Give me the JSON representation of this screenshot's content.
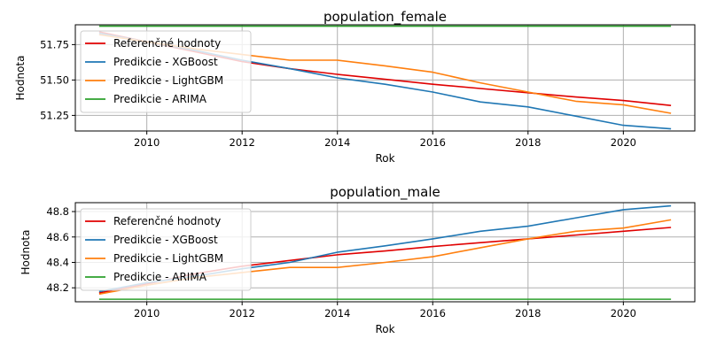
{
  "chart_data": [
    {
      "type": "line",
      "title": "population_female",
      "xlabel": "Rok",
      "ylabel": "Hodnota",
      "xlim": [
        2008.5,
        2021.5
      ],
      "ylim": [
        51.14,
        51.89
      ],
      "xticks": [
        2010,
        2012,
        2014,
        2016,
        2018,
        2020
      ],
      "yticks": [
        51.25,
        51.5,
        51.75
      ],
      "ytick_labels": [
        "51.25",
        "51.50",
        "51.75"
      ],
      "grid": true,
      "legend": "upper-left",
      "x": [
        2009,
        2010,
        2011,
        2012,
        2013,
        2014,
        2015,
        2016,
        2017,
        2018,
        2019,
        2020,
        2021
      ],
      "series": [
        {
          "name": "Referenčné hodnoty",
          "color": "#e00000",
          "values": [
            51.84,
            51.77,
            51.7,
            51.63,
            51.58,
            51.54,
            51.505,
            51.47,
            51.44,
            51.41,
            51.38,
            51.355,
            51.32
          ]
        },
        {
          "name": "Predikcie - XGBoost",
          "color": "#1f77b4",
          "values": [
            51.83,
            51.77,
            51.71,
            51.64,
            51.58,
            51.515,
            51.47,
            51.415,
            51.345,
            51.31,
            51.245,
            51.18,
            51.155
          ]
        },
        {
          "name": "Predikcie - LightGBM",
          "color": "#ff7f0e",
          "values": [
            51.82,
            51.77,
            51.72,
            51.68,
            51.64,
            51.64,
            51.6,
            51.555,
            51.48,
            51.415,
            51.35,
            51.325,
            51.265
          ]
        },
        {
          "name": "Predikcie - ARIMA",
          "color": "#2ca02c",
          "values": [
            51.88,
            51.88,
            51.88,
            51.88,
            51.88,
            51.88,
            51.88,
            51.88,
            51.88,
            51.88,
            51.88,
            51.88,
            51.88
          ]
        }
      ]
    },
    {
      "type": "line",
      "title": "population_male",
      "xlabel": "Rok",
      "ylabel": "Hodnota",
      "xlim": [
        2008.5,
        2021.5
      ],
      "ylim": [
        48.09,
        48.87
      ],
      "xticks": [
        2010,
        2012,
        2014,
        2016,
        2018,
        2020
      ],
      "yticks": [
        48.2,
        48.4,
        48.6,
        48.8
      ],
      "ytick_labels": [
        "48.2",
        "48.4",
        "48.6",
        "48.8"
      ],
      "grid": true,
      "legend": "upper-left",
      "x": [
        2009,
        2010,
        2011,
        2012,
        2013,
        2014,
        2015,
        2016,
        2017,
        2018,
        2019,
        2020,
        2021
      ],
      "series": [
        {
          "name": "Referenčné hodnoty",
          "color": "#e00000",
          "values": [
            48.16,
            48.23,
            48.31,
            48.37,
            48.415,
            48.46,
            48.49,
            48.525,
            48.555,
            48.585,
            48.615,
            48.645,
            48.675
          ]
        },
        {
          "name": "Predikcie - XGBoost",
          "color": "#1f77b4",
          "values": [
            48.17,
            48.24,
            48.29,
            48.35,
            48.4,
            48.48,
            48.53,
            48.585,
            48.645,
            48.685,
            48.75,
            48.815,
            48.845
          ]
        },
        {
          "name": "Predikcie - LightGBM",
          "color": "#ff7f0e",
          "values": [
            48.15,
            48.22,
            48.28,
            48.32,
            48.36,
            48.36,
            48.4,
            48.445,
            48.515,
            48.585,
            48.645,
            48.67,
            48.735
          ]
        },
        {
          "name": "Predikcie - ARIMA",
          "color": "#2ca02c",
          "values": [
            48.11,
            48.11,
            48.11,
            48.11,
            48.11,
            48.11,
            48.11,
            48.11,
            48.11,
            48.11,
            48.11,
            48.11,
            48.11
          ]
        }
      ]
    }
  ]
}
